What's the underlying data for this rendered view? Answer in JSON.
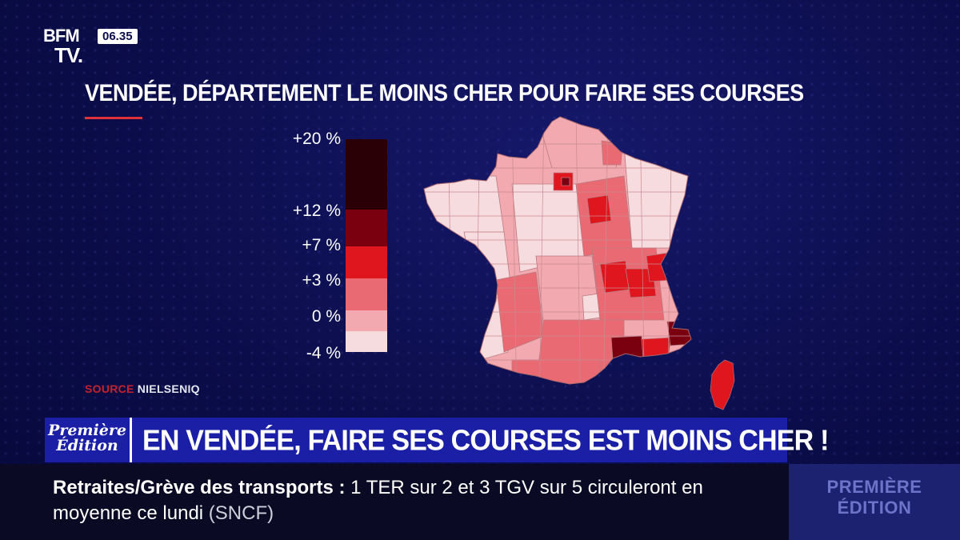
{
  "channel": {
    "logo_line1": "BFM",
    "logo_line2": "TV.",
    "time": "06.35"
  },
  "title": "VENDÉE, DÉPARTEMENT LE MOINS CHER POUR FAIRE SES COURSES",
  "legend": {
    "labels": [
      "+20 %",
      "+12 %",
      "+7 %",
      "+3 %",
      "0 %",
      "-4 %"
    ],
    "bands": [
      {
        "from": 12,
        "to": 20,
        "color": "#2a0006"
      },
      {
        "from": 7,
        "to": 12,
        "color": "#7a0010"
      },
      {
        "from": 3,
        "to": 7,
        "color": "#e0161f"
      },
      {
        "from": 0,
        "to": 3,
        "color": "#ea6a74"
      },
      {
        "from": -2,
        "to": 0,
        "color": "#f2aab0"
      },
      {
        "from": -4,
        "to": -2,
        "color": "#f7dcdf"
      }
    ]
  },
  "source": {
    "label": "SOURCE",
    "value": "NIELSENIQ"
  },
  "banner": {
    "program_line1": "Première",
    "program_line2": "Édition",
    "headline": "EN VENDÉE, FAIRE SES COURSES EST MOINS CHER !"
  },
  "ticker": {
    "topic": "Retraites/Grève des transports :",
    "text": "1 TER sur 2 et 3 TGV sur 5 circuleront en moyenne ce lundi",
    "source": "(SNCF)"
  },
  "edition_box": {
    "line1": "PREMIÈRE",
    "line2": "ÉDITION"
  },
  "colors": {
    "accent_red": "#e0303a",
    "banner_blue": "#1a1fa6",
    "map_lightest": "#f7dcdf",
    "map_darkest": "#2a0006"
  }
}
